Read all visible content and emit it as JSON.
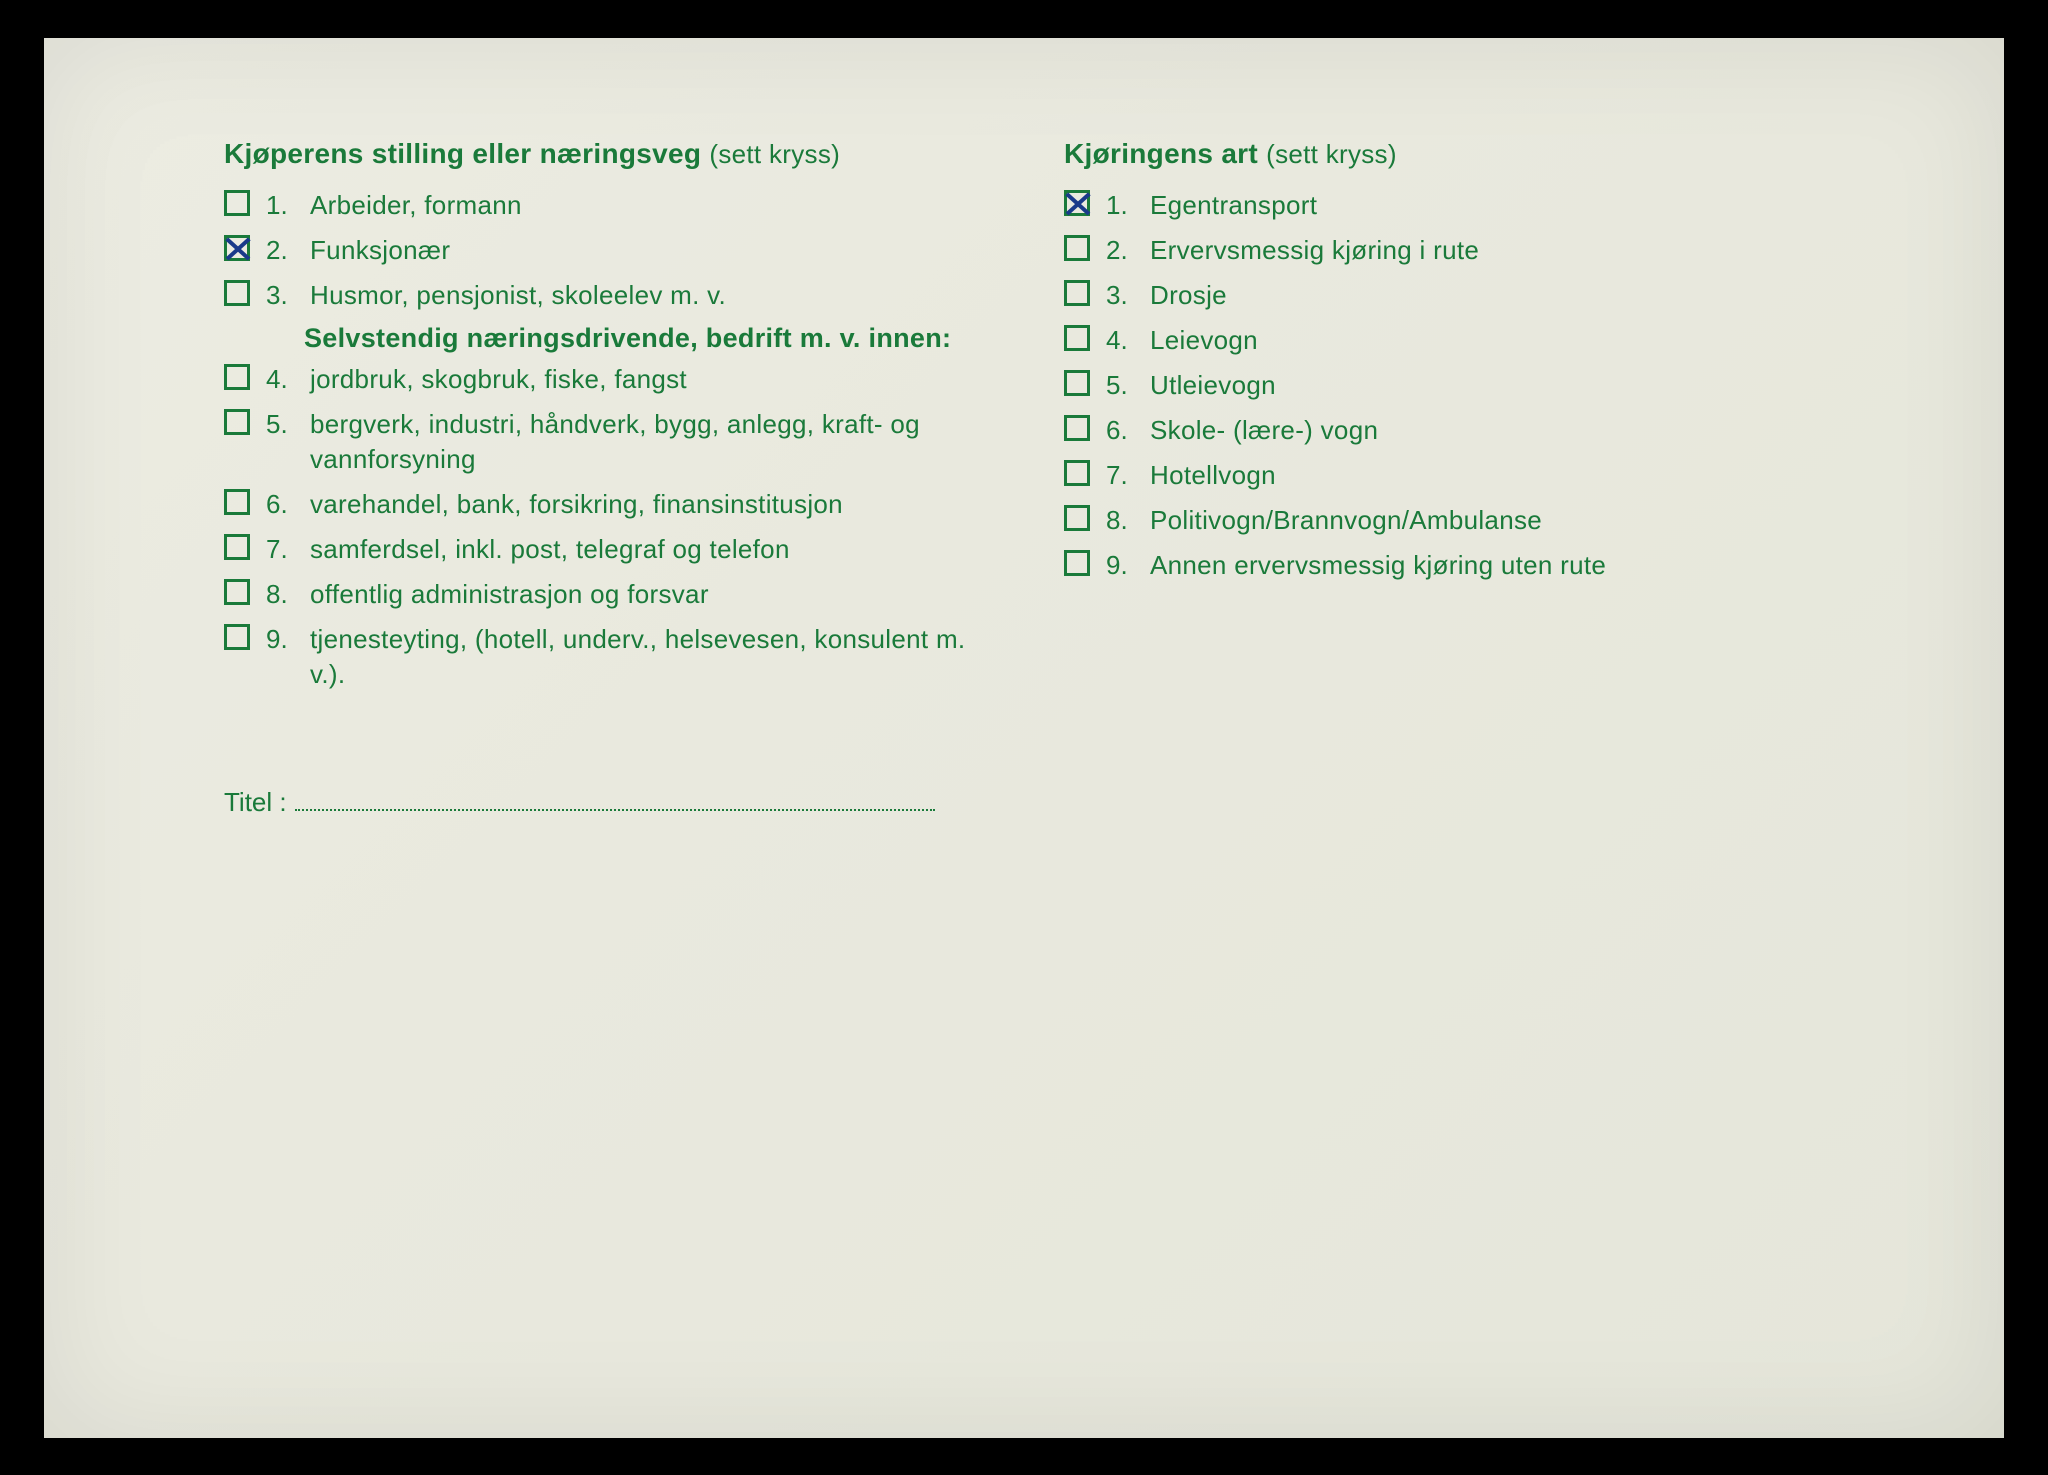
{
  "colors": {
    "text": "#1a7a3a",
    "check_mark": "#1a3a8a",
    "paper_bg": "#e9e9de"
  },
  "left": {
    "title_bold": "Kjøperens stilling eller næringsveg",
    "title_hint": "(sett kryss)",
    "items_top": [
      {
        "num": "1.",
        "label": "Arbeider, formann",
        "checked": false
      },
      {
        "num": "2.",
        "label": "Funksjonær",
        "checked": true
      },
      {
        "num": "3.",
        "label": "Husmor, pensjonist, skoleelev m. v.",
        "checked": false
      }
    ],
    "subheading": "Selvstendig næringsdrivende, bedrift m. v. innen:",
    "items_bottom": [
      {
        "num": "4.",
        "label": "jordbruk, skogbruk, fiske, fangst",
        "checked": false
      },
      {
        "num": "5.",
        "label": "bergverk, industri, håndverk, bygg, anlegg, kraft- og vannforsyning",
        "checked": false
      },
      {
        "num": "6.",
        "label": "varehandel, bank, forsikring, finansinstitusjon",
        "checked": false
      },
      {
        "num": "7.",
        "label": "samferdsel, inkl. post, telegraf og telefon",
        "checked": false
      },
      {
        "num": "8.",
        "label": "offentlig administrasjon og forsvar",
        "checked": false
      },
      {
        "num": "9.",
        "label": "tjenesteyting, (hotell, underv., helsevesen, konsulent m. v.).",
        "checked": false
      }
    ]
  },
  "right": {
    "title_bold": "Kjøringens art",
    "title_hint": "(sett kryss)",
    "items": [
      {
        "num": "1.",
        "label": "Egentransport",
        "checked": true
      },
      {
        "num": "2.",
        "label": "Ervervsmessig kjøring i rute",
        "checked": false
      },
      {
        "num": "3.",
        "label": "Drosje",
        "checked": false
      },
      {
        "num": "4.",
        "label": "Leievogn",
        "checked": false
      },
      {
        "num": "5.",
        "label": "Utleievogn",
        "checked": false
      },
      {
        "num": "6.",
        "label": "Skole- (lære-) vogn",
        "checked": false
      },
      {
        "num": "7.",
        "label": "Hotellvogn",
        "checked": false
      },
      {
        "num": "8.",
        "label": "Politivogn/Brannvogn/Ambulanse",
        "checked": false
      },
      {
        "num": "9.",
        "label": "Annen ervervsmessig kjøring uten rute",
        "checked": false
      }
    ]
  },
  "titel": {
    "label": "Titel :",
    "value": ""
  }
}
